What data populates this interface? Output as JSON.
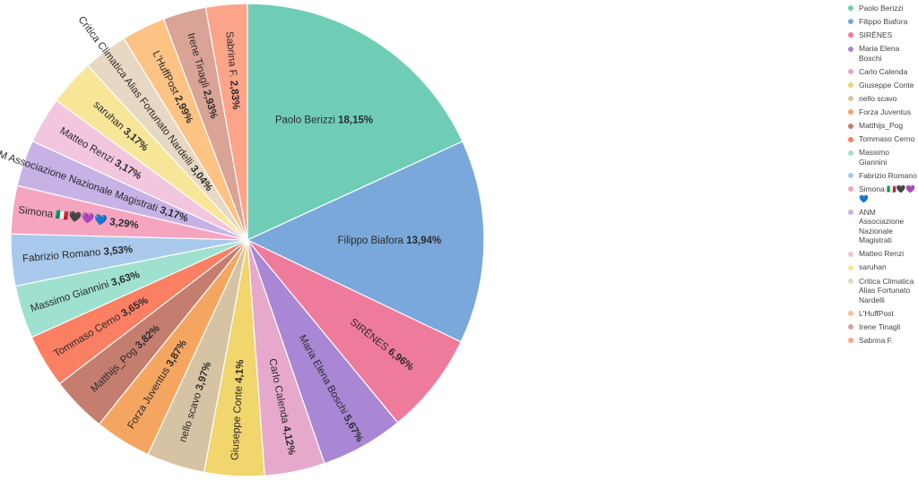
{
  "chart_data": {
    "type": "pie",
    "title": "",
    "legend_position": "right",
    "slices": [
      {
        "label": "Paolo Berizzi",
        "value": 18.15,
        "value_label": "18,15%",
        "color": "#6fcdb5"
      },
      {
        "label": "Filippo Biafora",
        "value": 13.94,
        "value_label": "13,94%",
        "color": "#7aa8da"
      },
      {
        "label": "SIRĒNES",
        "value": 6.96,
        "value_label": "6,96%",
        "color": "#ef7b9c"
      },
      {
        "label": "Maria Elena Boschi",
        "value": 5.67,
        "value_label": "5,67%",
        "color": "#a987d4"
      },
      {
        "label": "Carlo Calenda",
        "value": 4.12,
        "value_label": "4,12%",
        "color": "#e6a9cc"
      },
      {
        "label": "Giuseppe Conte",
        "value": 4.1,
        "value_label": "4,1%",
        "color": "#f1d56d"
      },
      {
        "label": "nello scavo",
        "value": 3.97,
        "value_label": "3,97%",
        "color": "#d6c3a4"
      },
      {
        "label": "Forza Juventus",
        "value": 3.87,
        "value_label": "3,87%",
        "color": "#f4a660"
      },
      {
        "label": "Matthijs_Pog",
        "value": 3.82,
        "value_label": "3,82%",
        "color": "#c47d6e"
      },
      {
        "label": "Tommaso Cerno",
        "value": 3.65,
        "value_label": "3,65%",
        "color": "#fb7f62"
      },
      {
        "label": "Massimo Giannini",
        "value": 3.63,
        "value_label": "3,63%",
        "color": "#9fe1cf"
      },
      {
        "label": "Fabrizio Romano",
        "value": 3.53,
        "value_label": "3,53%",
        "color": "#a9c9ec"
      },
      {
        "label": "Simona 🇮🇹🖤💜💙",
        "value": 3.29,
        "value_label": "3,29%",
        "color": "#f6a5c0"
      },
      {
        "label": "ANM Associazione Nazionale Magistrati",
        "value": 3.17,
        "value_label": "3,17%",
        "color": "#c7b2e6"
      },
      {
        "label": "Matteo Renzi",
        "value": 3.17,
        "value_label": "3,17%",
        "color": "#f2c6dd"
      },
      {
        "label": "saruhan",
        "value": 3.17,
        "value_label": "3,17%",
        "color": "#f7e697"
      },
      {
        "label": "Critica Climatica Alias Fortunato Nardelli",
        "value": 3.04,
        "value_label": "3,04%",
        "color": "#e6d8c2"
      },
      {
        "label": "L'HuffPost",
        "value": 2.99,
        "value_label": "2,99%",
        "color": "#fcc385"
      },
      {
        "label": "Irene Tinagli",
        "value": 2.93,
        "value_label": "2,93%",
        "color": "#d9a395"
      },
      {
        "label": "Sabrina F.",
        "value": 2.83,
        "value_label": "2,83%",
        "color": "#fca48a"
      }
    ]
  }
}
